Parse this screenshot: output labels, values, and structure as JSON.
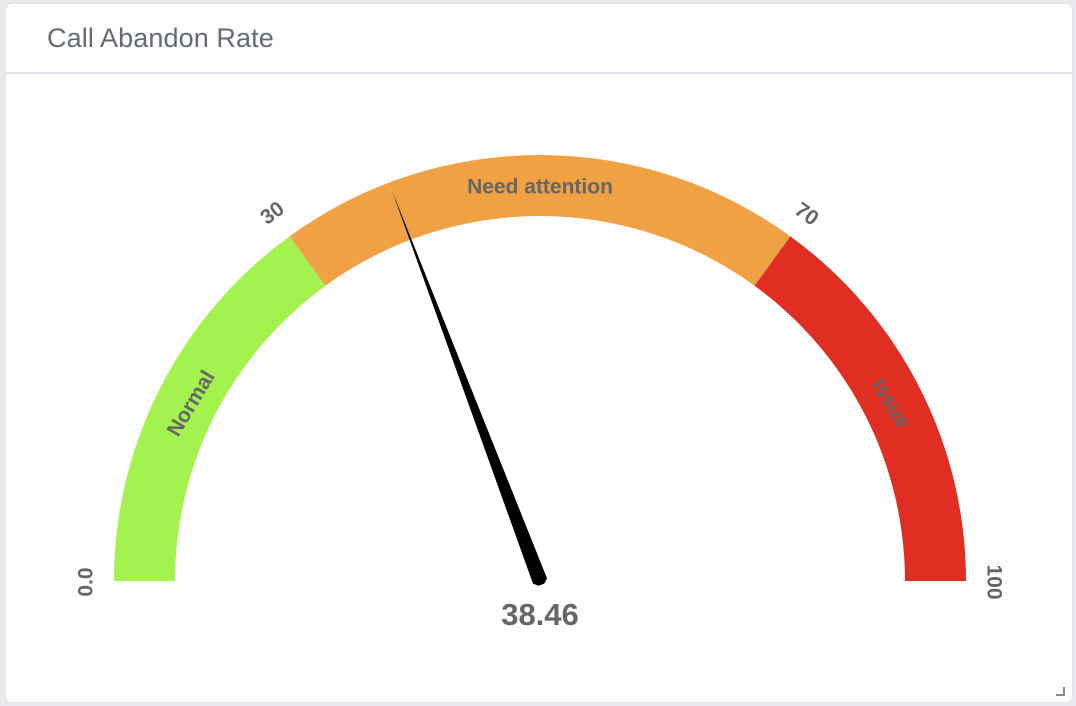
{
  "panel": {
    "title": "Call Abandon Rate"
  },
  "chart_data": {
    "type": "gauge",
    "title": "Call Abandon Rate",
    "value": 38.46,
    "value_label": "38.46",
    "min": 0,
    "max": 100,
    "tick_labels": [
      "0.0",
      "30",
      "70",
      "100"
    ],
    "bands": [
      {
        "label": "Normal",
        "from": 0,
        "to": 30,
        "color": "#a3f24d"
      },
      {
        "label": "Need attention",
        "from": 30,
        "to": 70,
        "color": "#f0a143"
      },
      {
        "label": "Issue",
        "from": 70,
        "to": 100,
        "color": "#e02e22"
      }
    ],
    "needle_color": "#000000"
  }
}
